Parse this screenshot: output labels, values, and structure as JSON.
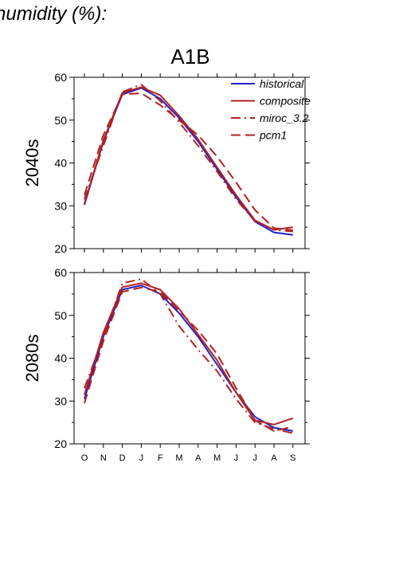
{
  "heading": "humidity (%):",
  "scenario": "A1B",
  "chart_data": [
    {
      "type": "line",
      "title": "A1B",
      "ylabel": "2040s",
      "ylim": [
        20,
        60
      ],
      "yticks": [
        20,
        30,
        40,
        50,
        60
      ],
      "categories": [
        "O",
        "N",
        "D",
        "J",
        "F",
        "M",
        "A",
        "M",
        "J",
        "J",
        "A",
        "S"
      ],
      "legend_position": "top-right",
      "series": [
        {
          "name": "historical",
          "color": "#2323c8",
          "dash": "solid",
          "values": [
            30.2,
            45.0,
            56.0,
            57.5,
            55.0,
            50.5,
            45.0,
            38.5,
            32.0,
            26.3,
            23.8,
            23.2
          ]
        },
        {
          "name": "composite",
          "color": "#b22222",
          "dash": "solid",
          "values": [
            30.5,
            45.3,
            56.4,
            57.7,
            55.8,
            51.0,
            45.5,
            39.0,
            32.5,
            26.6,
            24.4,
            25.0
          ]
        },
        {
          "name": "miroc_3.2",
          "color": "#b22222",
          "dash": "dashdot",
          "values": [
            31.5,
            44.0,
            56.6,
            58.3,
            54.5,
            49.5,
            44.0,
            38.0,
            31.5,
            26.4,
            24.4,
            24.0
          ]
        },
        {
          "name": "pcm1",
          "color": "#b22222",
          "dash": "dash",
          "values": [
            32.5,
            46.5,
            56.0,
            56.3,
            53.5,
            50.0,
            46.5,
            41.5,
            35.5,
            29.0,
            24.8,
            24.3
          ]
        }
      ]
    },
    {
      "type": "line",
      "ylabel": "2080s",
      "ylim": [
        20,
        60
      ],
      "yticks": [
        20,
        30,
        40,
        50,
        60
      ],
      "categories": [
        "O",
        "N",
        "D",
        "J",
        "F",
        "M",
        "A",
        "M",
        "J",
        "J",
        "A",
        "S"
      ],
      "xticklabels": [
        "O",
        "N",
        "D",
        "J",
        "F",
        "M",
        "A",
        "M",
        "J",
        "J",
        "A",
        "S"
      ],
      "series": [
        {
          "name": "historical",
          "color": "#2323c8",
          "dash": "solid",
          "values": [
            30.5,
            45.0,
            56.0,
            57.0,
            55.0,
            50.5,
            45.0,
            38.5,
            32.0,
            26.3,
            23.8,
            23.0
          ]
        },
        {
          "name": "composite",
          "color": "#b22222",
          "dash": "solid",
          "values": [
            31.5,
            46.0,
            56.6,
            57.5,
            56.0,
            51.5,
            45.5,
            39.5,
            32.0,
            25.5,
            24.5,
            26.0
          ]
        },
        {
          "name": "miroc_3.2",
          "color": "#b22222",
          "dash": "dashdot",
          "values": [
            33.0,
            45.0,
            57.5,
            58.5,
            55.0,
            47.5,
            42.0,
            37.0,
            30.5,
            25.0,
            23.5,
            22.5
          ]
        },
        {
          "name": "pcm1",
          "color": "#b22222",
          "dash": "dash",
          "values": [
            29.5,
            44.0,
            55.5,
            56.5,
            55.5,
            51.0,
            46.5,
            41.0,
            33.0,
            25.5,
            23.0,
            24.0
          ]
        }
      ]
    }
  ]
}
